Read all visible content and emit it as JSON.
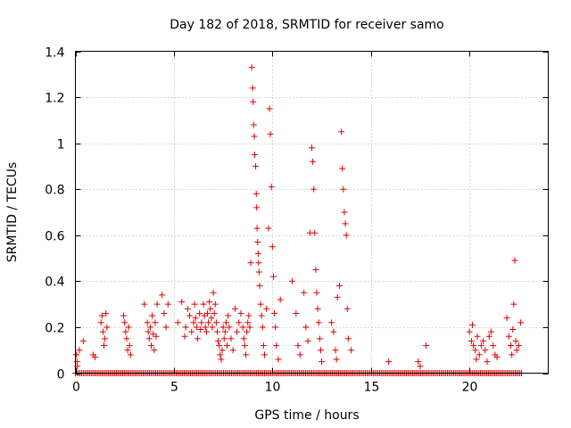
{
  "chart_data": {
    "type": "scatter",
    "title": "Day 182 of 2018, SRMTID for receiver samo",
    "xlabel": "GPS time / hours",
    "ylabel": "SRMTID / TECUs",
    "xlim": [
      0,
      24
    ],
    "ylim": [
      0,
      1.4
    ],
    "xticks": [
      0,
      5,
      10,
      15,
      20
    ],
    "yticks": [
      0,
      0.2,
      0.4,
      0.6,
      0.8,
      1,
      1.2,
      1.4
    ],
    "xtick_labels": [
      "0",
      "5",
      "10",
      "15",
      "20"
    ],
    "ytick_labels": [
      "0",
      "0.2",
      "0.4",
      "0.6",
      "0.8",
      "1",
      "1.2",
      "1.4"
    ],
    "grid": true,
    "marker": "+",
    "color": "#e00000",
    "baseline": {
      "y": 0,
      "x_start": 0,
      "x_end": 22.7,
      "step": 0.08
    },
    "series": [
      {
        "name": "SRMTID",
        "points": [
          [
            0.05,
            0.08
          ],
          [
            0.08,
            0.05
          ],
          [
            0.1,
            0.03
          ],
          [
            0.2,
            0.1
          ],
          [
            0.4,
            0.14
          ],
          [
            0.9,
            0.08
          ],
          [
            1.0,
            0.07
          ],
          [
            1.3,
            0.22
          ],
          [
            1.35,
            0.25
          ],
          [
            1.4,
            0.18
          ],
          [
            1.45,
            0.12
          ],
          [
            1.5,
            0.15
          ],
          [
            1.55,
            0.26
          ],
          [
            1.6,
            0.2
          ],
          [
            2.45,
            0.25
          ],
          [
            2.5,
            0.22
          ],
          [
            2.55,
            0.18
          ],
          [
            2.6,
            0.15
          ],
          [
            2.65,
            0.1
          ],
          [
            2.7,
            0.2
          ],
          [
            2.75,
            0.12
          ],
          [
            2.8,
            0.08
          ],
          [
            3.5,
            0.3
          ],
          [
            3.65,
            0.22
          ],
          [
            3.7,
            0.18
          ],
          [
            3.75,
            0.15
          ],
          [
            3.8,
            0.2
          ],
          [
            3.85,
            0.12
          ],
          [
            3.9,
            0.25
          ],
          [
            3.95,
            0.17
          ],
          [
            4.0,
            0.1
          ],
          [
            4.05,
            0.22
          ],
          [
            4.1,
            0.16
          ],
          [
            4.15,
            0.3
          ],
          [
            4.4,
            0.34
          ],
          [
            4.5,
            0.26
          ],
          [
            4.6,
            0.2
          ],
          [
            4.7,
            0.3
          ],
          [
            5.2,
            0.22
          ],
          [
            5.4,
            0.31
          ],
          [
            5.55,
            0.16
          ],
          [
            5.6,
            0.2
          ],
          [
            5.7,
            0.28
          ],
          [
            5.8,
            0.25
          ],
          [
            5.9,
            0.18
          ],
          [
            6.0,
            0.22
          ],
          [
            6.05,
            0.3
          ],
          [
            6.1,
            0.24
          ],
          [
            6.15,
            0.2
          ],
          [
            6.2,
            0.15
          ],
          [
            6.3,
            0.26
          ],
          [
            6.35,
            0.19
          ],
          [
            6.4,
            0.22
          ],
          [
            6.5,
            0.3
          ],
          [
            6.55,
            0.25
          ],
          [
            6.6,
            0.2
          ],
          [
            6.65,
            0.18
          ],
          [
            6.7,
            0.26
          ],
          [
            6.75,
            0.22
          ],
          [
            6.8,
            0.31
          ],
          [
            6.85,
            0.28
          ],
          [
            6.9,
            0.24
          ],
          [
            6.95,
            0.2
          ],
          [
            7.0,
            0.35
          ],
          [
            7.05,
            0.26
          ],
          [
            7.1,
            0.3
          ],
          [
            7.15,
            0.22
          ],
          [
            7.2,
            0.18
          ],
          [
            7.25,
            0.14
          ],
          [
            7.3,
            0.12
          ],
          [
            7.35,
            0.08
          ],
          [
            7.4,
            0.06
          ],
          [
            7.45,
            0.1
          ],
          [
            7.5,
            0.2
          ],
          [
            7.55,
            0.15
          ],
          [
            7.6,
            0.18
          ],
          [
            7.65,
            0.22
          ],
          [
            7.7,
            0.12
          ],
          [
            7.75,
            0.25
          ],
          [
            7.8,
            0.2
          ],
          [
            7.9,
            0.15
          ],
          [
            8.0,
            0.1
          ],
          [
            8.1,
            0.28
          ],
          [
            8.2,
            0.18
          ],
          [
            8.3,
            0.22
          ],
          [
            8.4,
            0.26
          ],
          [
            8.5,
            0.2
          ],
          [
            8.55,
            0.15
          ],
          [
            8.6,
            0.12
          ],
          [
            8.65,
            0.08
          ],
          [
            8.7,
            0.18
          ],
          [
            8.75,
            0.22
          ],
          [
            8.8,
            0.25
          ],
          [
            8.85,
            0.2
          ],
          [
            8.9,
            0.48
          ],
          [
            8.95,
            1.33
          ],
          [
            9.0,
            1.24
          ],
          [
            9.02,
            1.18
          ],
          [
            9.05,
            1.08
          ],
          [
            9.08,
            1.03
          ],
          [
            9.1,
            0.95
          ],
          [
            9.15,
            0.9
          ],
          [
            9.18,
            0.78
          ],
          [
            9.2,
            0.72
          ],
          [
            9.22,
            0.63
          ],
          [
            9.25,
            0.57
          ],
          [
            9.28,
            0.52
          ],
          [
            9.3,
            0.48
          ],
          [
            9.32,
            0.44
          ],
          [
            9.35,
            0.38
          ],
          [
            9.4,
            0.3
          ],
          [
            9.45,
            0.25
          ],
          [
            9.5,
            0.2
          ],
          [
            9.55,
            0.12
          ],
          [
            9.6,
            0.08
          ],
          [
            9.7,
            0.28
          ],
          [
            9.8,
            0.63
          ],
          [
            9.85,
            1.15
          ],
          [
            9.9,
            1.04
          ],
          [
            9.95,
            0.81
          ],
          [
            10.0,
            0.55
          ],
          [
            10.05,
            0.42
          ],
          [
            10.1,
            0.26
          ],
          [
            10.15,
            0.2
          ],
          [
            10.2,
            0.12
          ],
          [
            10.3,
            0.06
          ],
          [
            10.4,
            0.32
          ],
          [
            11.0,
            0.4
          ],
          [
            11.2,
            0.26
          ],
          [
            11.3,
            0.12
          ],
          [
            11.4,
            0.08
          ],
          [
            11.6,
            0.35
          ],
          [
            11.7,
            0.2
          ],
          [
            11.8,
            0.14
          ],
          [
            11.9,
            0.61
          ],
          [
            12.0,
            0.98
          ],
          [
            12.05,
            0.92
          ],
          [
            12.1,
            0.8
          ],
          [
            12.15,
            0.61
          ],
          [
            12.2,
            0.45
          ],
          [
            12.25,
            0.35
          ],
          [
            12.3,
            0.28
          ],
          [
            12.35,
            0.22
          ],
          [
            12.4,
            0.15
          ],
          [
            12.45,
            0.1
          ],
          [
            12.5,
            0.05
          ],
          [
            13.0,
            0.22
          ],
          [
            13.1,
            0.18
          ],
          [
            13.2,
            0.1
          ],
          [
            13.25,
            0.06
          ],
          [
            13.3,
            0.33
          ],
          [
            13.4,
            0.38
          ],
          [
            13.5,
            1.05
          ],
          [
            13.55,
            0.89
          ],
          [
            13.6,
            0.8
          ],
          [
            13.65,
            0.7
          ],
          [
            13.7,
            0.65
          ],
          [
            13.75,
            0.6
          ],
          [
            13.8,
            0.28
          ],
          [
            13.85,
            0.15
          ],
          [
            14.0,
            0.1
          ],
          [
            15.9,
            0.05
          ],
          [
            17.4,
            0.05
          ],
          [
            17.5,
            0.03
          ],
          [
            17.8,
            0.12
          ],
          [
            20.0,
            0.18
          ],
          [
            20.1,
            0.14
          ],
          [
            20.15,
            0.21
          ],
          [
            20.2,
            0.12
          ],
          [
            20.3,
            0.1
          ],
          [
            20.35,
            0.06
          ],
          [
            20.4,
            0.16
          ],
          [
            20.5,
            0.08
          ],
          [
            20.6,
            0.12
          ],
          [
            20.7,
            0.14
          ],
          [
            20.8,
            0.1
          ],
          [
            20.9,
            0.05
          ],
          [
            21.0,
            0.16
          ],
          [
            21.1,
            0.18
          ],
          [
            21.2,
            0.12
          ],
          [
            21.3,
            0.08
          ],
          [
            21.4,
            0.07
          ],
          [
            21.9,
            0.24
          ],
          [
            22.0,
            0.16
          ],
          [
            22.1,
            0.12
          ],
          [
            22.15,
            0.08
          ],
          [
            22.2,
            0.19
          ],
          [
            22.25,
            0.3
          ],
          [
            22.3,
            0.49
          ],
          [
            22.35,
            0.14
          ],
          [
            22.4,
            0.1
          ],
          [
            22.5,
            0.12
          ],
          [
            22.6,
            0.22
          ]
        ]
      }
    ]
  }
}
